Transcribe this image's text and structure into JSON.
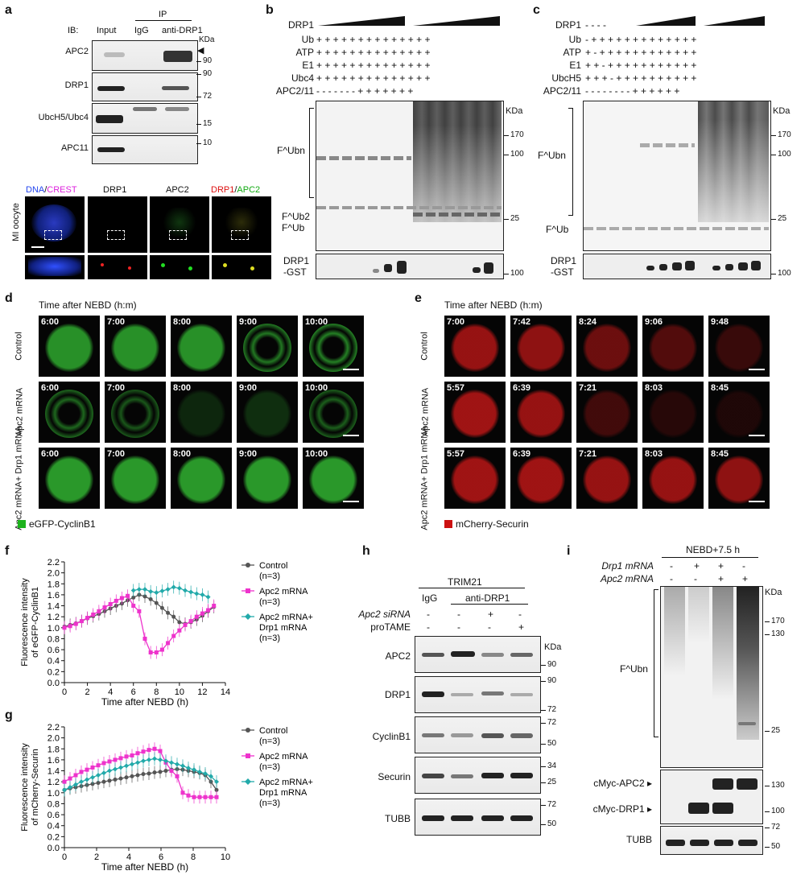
{
  "panels": {
    "a": "a",
    "b": "b",
    "c": "c",
    "d": "d",
    "e": "e",
    "f": "f",
    "g": "g",
    "h": "h",
    "i": "i"
  },
  "a": {
    "ib": "IB:",
    "input": "Input",
    "ip": "IP",
    "igg": "IgG",
    "anti": "anti-DRP1",
    "kda": "KDa",
    "rows": [
      "APC2",
      "DRP1",
      "UbcH5/Ubc4",
      "APC11"
    ],
    "mw": [
      "90",
      "90",
      "72",
      "15",
      "10"
    ],
    "img_labels": {
      "dna": "DNA",
      "slash": "/",
      "crest": "CREST",
      "drp1": "DRP1",
      "apc2": "APC2",
      "drp1b": "DRP1",
      "slash2": "/",
      "apc2b": "APC2"
    },
    "mi": "MI oocyte"
  },
  "b": {
    "rows": [
      "DRP1",
      "Ub",
      "ATP",
      "E1",
      "Ubc4",
      "APC2/11"
    ],
    "signs_plus": "+ + + + + + + + + + + + + +",
    "signs_apc": "- - - - - - - + + + + + + +",
    "kda": "KDa",
    "mw": [
      "170",
      "100",
      "25",
      "100"
    ],
    "labels": {
      "fubn": "F^Ubn",
      "fub2": "F^Ub2",
      "fub": "F^Ub",
      "drp1": "DRP1",
      "gst": "-GST"
    }
  },
  "c": {
    "rows": [
      "DRP1",
      "Ub",
      "ATP",
      "E1",
      "UbcH5",
      "APC2/11"
    ],
    "signs_drp1": "- - - -",
    "signs": [
      "- + + + + + + + + + + + + +",
      "+ - + + + + + + + + + + + +",
      "+ + - + + + + + + + + + + +",
      "+ + + - + + + + + + + + + +",
      "- - - - - - - - + + + + + +"
    ],
    "kda": "KDa",
    "mw": [
      "170",
      "100",
      "25",
      "100"
    ],
    "labels": {
      "fubn": "F^Ubn",
      "fub": "F^Ub",
      "drp1": "DRP1",
      "gst": "-GST"
    }
  },
  "d": {
    "title": "Time after NEBD (h:m)",
    "rows": [
      {
        "label": "Control",
        "times": [
          "6:00",
          "7:00",
          "8:00",
          "9:00",
          "10:00"
        ]
      },
      {
        "label": "Apc2 mRNA",
        "times": [
          "6:00",
          "7:00",
          "8:00",
          "9:00",
          "10:00"
        ]
      },
      {
        "label": "Apc2 mRNA+ Drp1 mRNA",
        "times": [
          "6:00",
          "7:00",
          "8:00",
          "9:00",
          "10:00"
        ]
      }
    ],
    "legend": "eGFP-CyclinB1",
    "color": "#1db31d"
  },
  "e": {
    "title": "Time after NEBD (h:m)",
    "rows": [
      {
        "label": "Control",
        "times": [
          "7:00",
          "7:42",
          "8:24",
          "9:06",
          "9:48"
        ]
      },
      {
        "label": "Apc2 mRNA",
        "times": [
          "5:57",
          "6:39",
          "7:21",
          "8:03",
          "8:45"
        ]
      },
      {
        "label": "Apc2 mRNA+ Drp1 mRNA",
        "times": [
          "5:57",
          "6:39",
          "7:21",
          "8:03",
          "8:45"
        ]
      }
    ],
    "legend": "mCherry-Securin",
    "color": "#cc1111"
  },
  "h": {
    "trim": "TRIM21",
    "igg": "IgG",
    "anti": "anti-DRP1",
    "sirna": "Apc2 siRNA",
    "sirna_signs": [
      "-",
      "-",
      "+",
      "-"
    ],
    "protame": "proTAME",
    "protame_signs": [
      "-",
      "-",
      "-",
      "+"
    ],
    "kda": "KDa",
    "rows": [
      "APC2",
      "DRP1",
      "CyclinB1",
      "Securin",
      "TUBB"
    ],
    "mw": [
      "90",
      "90",
      "72",
      "72",
      "50",
      "34",
      "25",
      "72",
      "50"
    ]
  },
  "i": {
    "title": "NEBD+7.5 h",
    "drp1": "Drp1 mRNA",
    "drp1_signs": [
      "-",
      "+",
      "+",
      "-"
    ],
    "apc2": "Apc2 mRNA",
    "apc2_signs": [
      "-",
      "-",
      "+",
      "+"
    ],
    "kda": "KDa",
    "fubn": "F^Ubn",
    "mw": [
      "170",
      "130",
      "25",
      "130",
      "100",
      "72",
      "50"
    ],
    "cmyc_apc2": "cMyc-APC2",
    "cmyc_drp1": "cMyc-DRP1",
    "tubb": "TUBB"
  },
  "chart_data": [
    {
      "type": "line",
      "panel": "f",
      "xlabel": "Time after NEBD (h)",
      "ylabel": "Fluorescence intensity of eGFP-CyclinB1",
      "xlim": [
        0,
        14
      ],
      "ylim": [
        0,
        2.2
      ],
      "xticks": [
        0,
        2,
        4,
        6,
        8,
        10,
        12,
        14
      ],
      "yticks": [
        0,
        0.2,
        0.4,
        0.6,
        0.8,
        1.0,
        1.2,
        1.4,
        1.6,
        1.8,
        2.0,
        2.2
      ],
      "x": [
        0,
        0.5,
        1,
        1.5,
        2,
        2.5,
        3,
        3.5,
        4,
        4.5,
        5,
        5.5,
        6,
        6.5,
        7,
        7.5,
        8,
        8.5,
        9,
        9.5,
        10,
        10.5,
        11,
        11.5,
        12,
        12.5,
        13
      ],
      "series": [
        {
          "name": "Control",
          "n": "(n=3)",
          "color": "#555555",
          "values": [
            1.02,
            1.05,
            1.08,
            1.12,
            1.17,
            1.21,
            1.25,
            1.3,
            1.35,
            1.4,
            1.44,
            1.5,
            1.55,
            1.6,
            1.57,
            1.52,
            1.45,
            1.36,
            1.27,
            1.2,
            1.1,
            1.07,
            1.1,
            1.15,
            1.22,
            1.3,
            1.38
          ]
        },
        {
          "name": "Apc2 mRNA",
          "n": "(n=3)",
          "color": "#ee33cc",
          "values": [
            1.0,
            1.03,
            1.07,
            1.12,
            1.18,
            1.24,
            1.3,
            1.37,
            1.43,
            1.49,
            1.54,
            1.58,
            1.4,
            1.3,
            0.8,
            0.55,
            0.55,
            0.6,
            0.72,
            0.85,
            0.95,
            1.05,
            1.12,
            1.2,
            1.26,
            1.32,
            1.4
          ]
        },
        {
          "name": "Apc2 mRNA+ Drp1 mRNA",
          "n": "(n=3)",
          "color": "#22aaaa",
          "values": [
            null,
            null,
            null,
            null,
            null,
            null,
            null,
            null,
            null,
            null,
            null,
            null,
            1.68,
            1.7,
            1.7,
            1.66,
            1.64,
            1.67,
            1.7,
            1.74,
            1.72,
            1.68,
            1.65,
            1.62,
            1.6,
            1.56,
            null
          ]
        }
      ]
    },
    {
      "type": "line",
      "panel": "g",
      "xlabel": "Time after NEBD (h)",
      "ylabel": "Fluorescence intensity of mCherry-Securin",
      "xlim": [
        0,
        10
      ],
      "ylim": [
        0,
        2.2
      ],
      "xticks": [
        0,
        2,
        4,
        6,
        8,
        10
      ],
      "yticks": [
        0,
        0.2,
        0.4,
        0.6,
        0.8,
        1.0,
        1.2,
        1.4,
        1.6,
        1.8,
        2.0,
        2.2
      ],
      "x": [
        0,
        0.35,
        0.7,
        1.05,
        1.4,
        1.75,
        2.1,
        2.45,
        2.8,
        3.15,
        3.5,
        3.85,
        4.2,
        4.55,
        4.9,
        5.25,
        5.6,
        5.95,
        6.3,
        6.65,
        7.0,
        7.35,
        7.7,
        8.05,
        8.4,
        8.75,
        9.1,
        9.45
      ],
      "series": [
        {
          "name": "Control",
          "n": "(n=3)",
          "color": "#555555",
          "values": [
            1.05,
            1.08,
            1.1,
            1.12,
            1.14,
            1.16,
            1.18,
            1.2,
            1.22,
            1.24,
            1.26,
            1.28,
            1.3,
            1.32,
            1.34,
            1.35,
            1.37,
            1.38,
            1.4,
            1.42,
            1.43,
            1.42,
            1.4,
            1.38,
            1.36,
            1.32,
            1.2,
            1.05
          ]
        },
        {
          "name": "Apc2 mRNA",
          "n": "(n=3)",
          "color": "#ee33cc",
          "values": [
            1.2,
            1.26,
            1.32,
            1.38,
            1.42,
            1.46,
            1.5,
            1.54,
            1.57,
            1.6,
            1.63,
            1.66,
            1.68,
            1.72,
            1.75,
            1.78,
            1.8,
            1.76,
            1.55,
            1.4,
            1.3,
            1.0,
            0.95,
            0.92,
            0.92,
            0.92,
            0.92,
            0.92
          ]
        },
        {
          "name": "Apc2 mRNA+ Drp1 mRNA",
          "n": "(n=3)",
          "color": "#22aaaa",
          "values": [
            1.05,
            1.1,
            1.15,
            1.2,
            1.24,
            1.28,
            1.32,
            1.36,
            1.4,
            1.43,
            1.46,
            1.49,
            1.52,
            1.55,
            1.58,
            1.6,
            1.62,
            1.6,
            1.58,
            1.55,
            1.52,
            1.49,
            1.45,
            1.42,
            1.38,
            1.35,
            1.3,
            1.2
          ]
        }
      ]
    }
  ]
}
